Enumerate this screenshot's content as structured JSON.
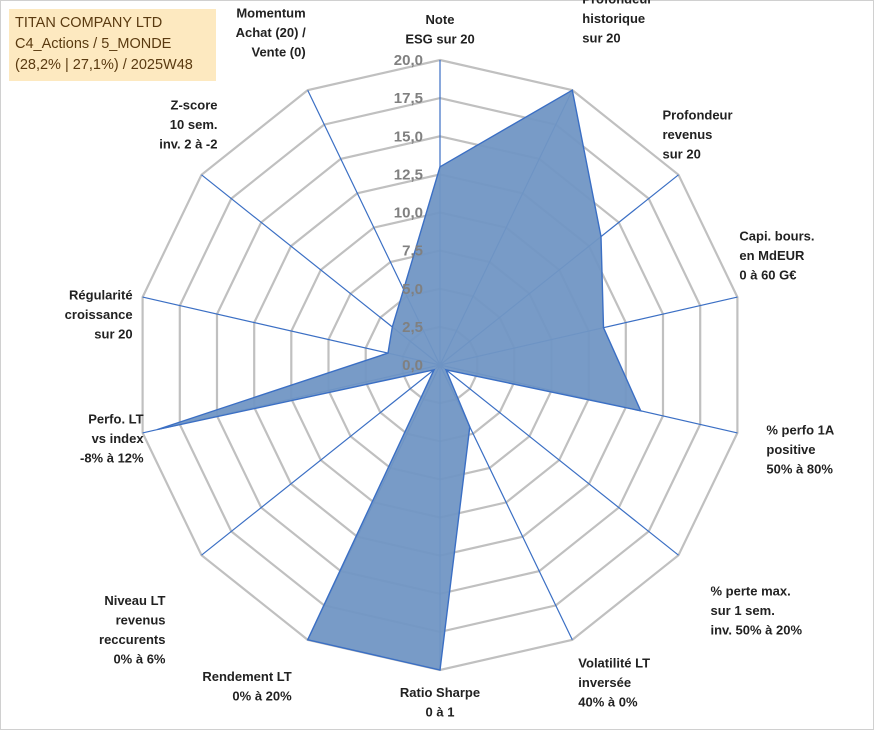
{
  "title_box": {
    "line1": "TITAN COMPANY LTD",
    "line2": "C4_Actions / 5_MONDE",
    "line3": "(28,2% | 27,1%) / 2025W48"
  },
  "colors": {
    "area_fill": "#7196c4",
    "area_stroke": "#3b6fc4",
    "grid": "#c0c0c0",
    "title_bg": "#fde9c0"
  },
  "chart_data": {
    "type": "radar",
    "title": "TITAN COMPANY LTD",
    "rmin": 0,
    "rmax": 20,
    "tick_step": 2.5,
    "grid_levels": 8,
    "tick_labels": [
      "0,0",
      "2,5",
      "5,0",
      "7,5",
      "10,0",
      "12,5",
      "15,0",
      "17,5",
      "20,0"
    ],
    "axes": [
      {
        "lines": [
          "Note",
          "ESG sur 20"
        ],
        "value": 13.0
      },
      {
        "lines": [
          "Profondeur",
          "historique",
          "sur 20"
        ],
        "value": 20.0
      },
      {
        "lines": [
          "Profondeur",
          "revenus",
          "sur 20"
        ],
        "value": 13.5
      },
      {
        "lines": [
          "Capi. bours.",
          "en MdEUR",
          "0 à 60 G€"
        ],
        "value": 11.0
      },
      {
        "lines": [
          "% perfo 1A",
          "positive",
          "50% à 80%"
        ],
        "value": 13.5
      },
      {
        "lines": [
          "% perte max.",
          "sur 1 sem.",
          "inv. 50% à 20%"
        ],
        "value": 0.5
      },
      {
        "lines": [
          "Volatilité LT",
          "inversée",
          "40% à 0%"
        ],
        "value": 4.5
      },
      {
        "lines": [
          "Ratio Sharpe",
          "0 à 1"
        ],
        "value": 20.0
      },
      {
        "lines": [
          "Rendement LT",
          "0% à 20%"
        ],
        "value": 20.0
      },
      {
        "lines": [
          "Niveau LT",
          "revenus",
          "reccurents",
          "0% à 6%"
        ],
        "value": 0.5
      },
      {
        "lines": [
          "Perfo. LT",
          "vs index",
          "-8% à 12%"
        ],
        "value": 19.0
      },
      {
        "lines": [
          "Régularité",
          "croissance",
          "sur 20"
        ],
        "value": 3.5
      },
      {
        "lines": [
          "Z-score",
          "10 sem.",
          "inv. 2 à -2"
        ],
        "value": 4.0
      },
      {
        "lines": [
          "Momentum",
          "Achat (20) /",
          "Vente (0)"
        ],
        "value": 5.5
      }
    ]
  }
}
